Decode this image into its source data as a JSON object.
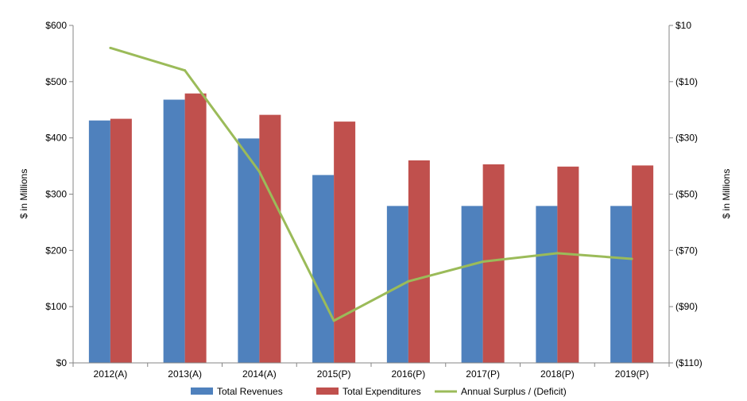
{
  "chart_data": {
    "type": "bar",
    "categories": [
      "2012(A)",
      "2013(A)",
      "2014(A)",
      "2015(P)",
      "2016(P)",
      "2017(P)",
      "2018(P)",
      "2019(P)"
    ],
    "series": [
      {
        "name": "Total Revenues",
        "type": "bar",
        "axis": "left",
        "color": "#4F81BD",
        "values": [
          431,
          468,
          399,
          334,
          279,
          279,
          279,
          279
        ]
      },
      {
        "name": "Total Expenditures",
        "type": "bar",
        "axis": "left",
        "color": "#C0504D",
        "values": [
          434,
          479,
          441,
          429,
          360,
          353,
          349,
          351
        ]
      },
      {
        "name": "Annual Surplus / (Deficit)",
        "type": "line",
        "axis": "right",
        "color": "#9BBB59",
        "values": [
          2,
          -6,
          -42,
          -95,
          -81,
          -74,
          -71,
          -73
        ]
      }
    ],
    "y_left": {
      "label": "$ in Millions",
      "lim": [
        0,
        600
      ],
      "ticks": [
        0,
        100,
        200,
        300,
        400,
        500,
        600
      ],
      "tick_labels": [
        "$0",
        "$100",
        "$200",
        "$300",
        "$400",
        "$500",
        "$600"
      ]
    },
    "y_right": {
      "label": "$ in Millions",
      "lim": [
        -110,
        10
      ],
      "ticks": [
        -110,
        -90,
        -70,
        -50,
        -30,
        -10,
        10
      ],
      "tick_labels": [
        "($110)",
        "($90)",
        "($70)",
        "($50)",
        "($30)",
        "($10)",
        "$10"
      ]
    },
    "legend_position": "bottom",
    "grid": false
  }
}
